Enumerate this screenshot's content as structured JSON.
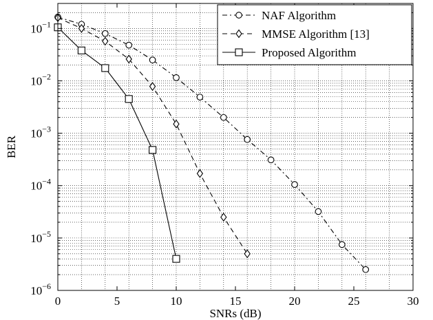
{
  "chart_data": {
    "type": "line",
    "xlabel": "SNRs (dB)",
    "ylabel": "BER",
    "xlim": [
      0,
      30
    ],
    "ylim": [
      1e-06,
      0.3
    ],
    "yscale": "log",
    "grid": true,
    "legend_position": "top-right",
    "x_ticks": [
      "0",
      "5",
      "10",
      "15",
      "20",
      "25",
      "30"
    ],
    "y_ticks": [
      {
        "base": "10",
        "exp": "−1"
      },
      {
        "base": "10",
        "exp": "−2"
      },
      {
        "base": "10",
        "exp": "−3"
      },
      {
        "base": "10",
        "exp": "−4"
      },
      {
        "base": "10",
        "exp": "−5"
      },
      {
        "base": "10",
        "exp": "−6"
      }
    ],
    "series": [
      {
        "name": "NAF Algorithm",
        "marker": "circle",
        "line_style": "dash-dot",
        "x": [
          0,
          2,
          4,
          6,
          8,
          10,
          12,
          14,
          16,
          18,
          20,
          22,
          24,
          26
        ],
        "y": [
          0.165,
          0.12,
          0.08,
          0.048,
          0.025,
          0.0115,
          0.0049,
          0.002,
          0.00076,
          0.00031,
          0.000105,
          3.2e-05,
          7.5e-06,
          2.5e-06
        ]
      },
      {
        "name": "MMSE Algorithm [13]",
        "marker": "diamond",
        "line_style": "dashed",
        "x": [
          0,
          2,
          4,
          6,
          8,
          10,
          12,
          14,
          16
        ],
        "y": [
          0.16,
          0.1,
          0.057,
          0.026,
          0.0078,
          0.0015,
          0.00017,
          2.5e-05,
          5e-06
        ]
      },
      {
        "name": "Proposed Algorithm",
        "marker": "square",
        "line_style": "solid",
        "x": [
          0,
          2,
          4,
          6,
          8,
          10
        ],
        "y": [
          0.105,
          0.038,
          0.0175,
          0.0045,
          0.00048,
          4e-06
        ]
      }
    ]
  }
}
